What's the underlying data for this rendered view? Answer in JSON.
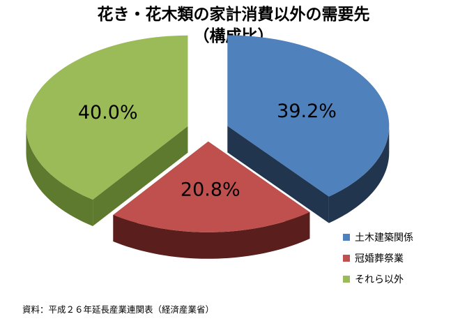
{
  "chart_data": {
    "type": "pie",
    "title_lines": [
      "花き・花木類の家計消費以外の需要先",
      "（構成比）"
    ],
    "slices": [
      {
        "name": "土木建築関係",
        "value": 39.2,
        "label": "39.2%",
        "color": "#4F81BD",
        "side_color": "#22354F"
      },
      {
        "name": "冠婚葬祭業",
        "value": 20.8,
        "label": "20.8%",
        "color": "#C0504D",
        "side_color": "#5A1E1C"
      },
      {
        "name": "それら以外",
        "value": 40.0,
        "label": "40.0%",
        "color": "#9BBB59",
        "side_color": "#5E7A2E"
      }
    ],
    "legend_position": "bottom-right",
    "exploded": true,
    "three_d": true
  },
  "source_note": "資料：平成２６年延長産業連関表（経済産業省）"
}
